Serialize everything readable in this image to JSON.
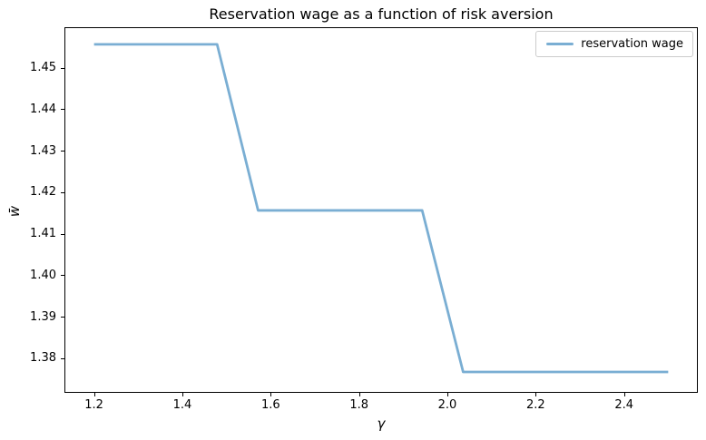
{
  "figure": {
    "title": "Reservation wage as a function of risk aversion",
    "xlabel": "γ",
    "ylabel": "w̄",
    "background_color": "#ffffff",
    "spine_color": "#000000"
  },
  "legend": {
    "position": "upper right",
    "entries": [
      {
        "label": "reservation wage",
        "color": "#7aaed3"
      }
    ]
  },
  "chart_data": {
    "type": "line",
    "title": "Reservation wage as a function of risk aversion",
    "xlabel": "γ",
    "ylabel": "w̄",
    "grid": false,
    "legend_position": "upper right",
    "xlim": [
      1.135,
      2.565
    ],
    "ylim": [
      1.3719,
      1.4595
    ],
    "xticks": [
      1.2,
      1.4,
      1.6,
      1.8,
      2.0,
      2.2,
      2.4
    ],
    "xtick_labels": [
      "1.2",
      "1.4",
      "1.6",
      "1.8",
      "2.0",
      "2.2",
      "2.4"
    ],
    "yticks": [
      1.38,
      1.39,
      1.4,
      1.41,
      1.42,
      1.43,
      1.44,
      1.45
    ],
    "ytick_labels": [
      "1.38",
      "1.39",
      "1.40",
      "1.41",
      "1.42",
      "1.43",
      "1.44",
      "1.45"
    ],
    "series": [
      {
        "name": "reservation wage",
        "color": "#7aaed3",
        "line_width": 2.8,
        "x": [
          1.2,
          1.2929,
          1.3857,
          1.4786,
          1.5714,
          1.6643,
          1.7571,
          1.85,
          1.9429,
          2.0357,
          2.1286,
          2.2214,
          2.3143,
          2.4071,
          2.5
        ],
        "y": [
          1.4556,
          1.4556,
          1.4556,
          1.4556,
          1.4156,
          1.4156,
          1.4156,
          1.4156,
          1.4156,
          1.3767,
          1.3767,
          1.3767,
          1.3767,
          1.3767,
          1.3767
        ]
      }
    ]
  }
}
